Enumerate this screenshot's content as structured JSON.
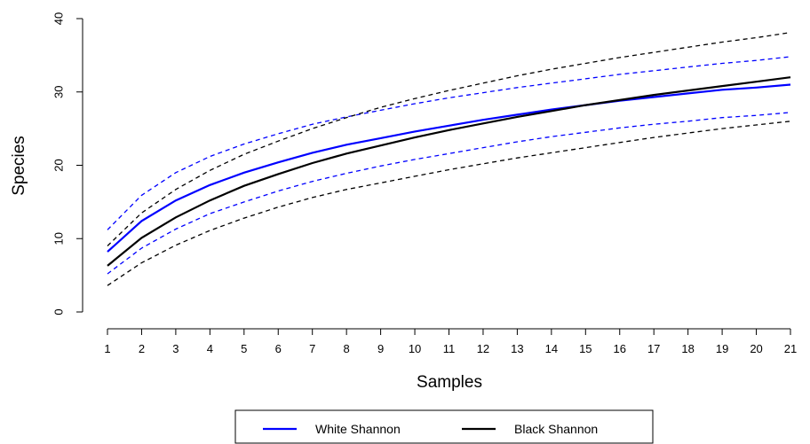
{
  "chart_data": {
    "type": "line",
    "xlabel": "Samples",
    "ylabel": "Species",
    "x": [
      1,
      2,
      3,
      4,
      5,
      6,
      7,
      8,
      9,
      10,
      11,
      12,
      13,
      14,
      15,
      16,
      17,
      18,
      19,
      20,
      21
    ],
    "xlim": [
      1,
      21
    ],
    "ylim": [
      0,
      40
    ],
    "yticks": [
      0,
      10,
      20,
      30,
      40
    ],
    "legend_position": "bottom",
    "series": [
      {
        "name": "White Shannon",
        "color": "#0000ff",
        "values": [
          8.2,
          12.4,
          15.2,
          17.3,
          19.0,
          20.4,
          21.7,
          22.8,
          23.7,
          24.6,
          25.4,
          26.2,
          26.9,
          27.6,
          28.2,
          28.8,
          29.3,
          29.8,
          30.3,
          30.6,
          31.0
        ],
        "upper": [
          11.2,
          15.9,
          19.0,
          21.2,
          22.9,
          24.3,
          25.6,
          26.6,
          27.5,
          28.4,
          29.2,
          29.9,
          30.6,
          31.2,
          31.8,
          32.4,
          32.9,
          33.4,
          33.9,
          34.3,
          34.8
        ],
        "lower": [
          5.2,
          8.7,
          11.3,
          13.4,
          15.0,
          16.5,
          17.8,
          18.9,
          19.9,
          20.8,
          21.6,
          22.4,
          23.2,
          23.9,
          24.5,
          25.1,
          25.6,
          26.0,
          26.5,
          26.8,
          27.2
        ]
      },
      {
        "name": "Black Shannon",
        "color": "#000000",
        "values": [
          6.3,
          10.1,
          12.9,
          15.2,
          17.2,
          18.8,
          20.3,
          21.6,
          22.7,
          23.8,
          24.8,
          25.7,
          26.6,
          27.4,
          28.2,
          28.9,
          29.6,
          30.2,
          30.8,
          31.4,
          32.0
        ],
        "upper": [
          9.0,
          13.5,
          16.7,
          19.3,
          21.5,
          23.3,
          25.0,
          26.5,
          27.9,
          29.1,
          30.2,
          31.2,
          32.2,
          33.1,
          33.9,
          34.7,
          35.4,
          36.1,
          36.8,
          37.4,
          38.1
        ],
        "lower": [
          3.6,
          6.7,
          9.1,
          11.1,
          12.8,
          14.3,
          15.6,
          16.7,
          17.6,
          18.5,
          19.4,
          20.2,
          21.0,
          21.7,
          22.4,
          23.1,
          23.8,
          24.4,
          25.0,
          25.5,
          26.0
        ]
      }
    ]
  }
}
